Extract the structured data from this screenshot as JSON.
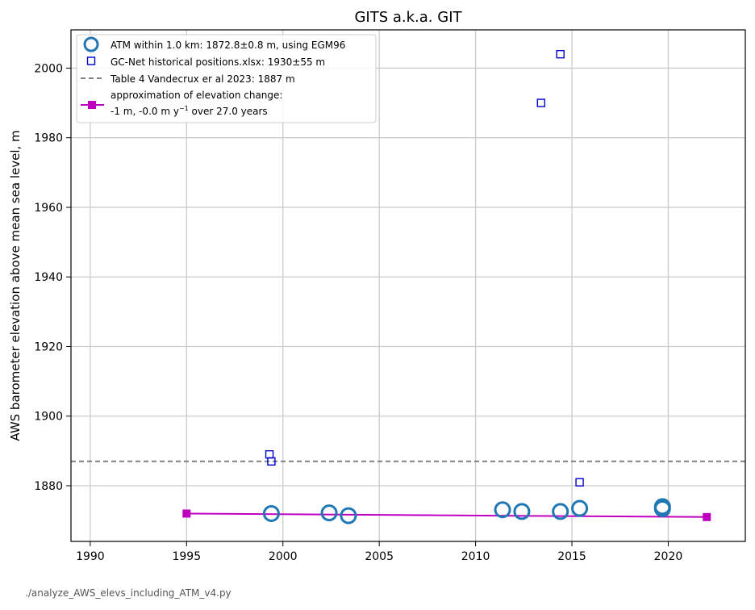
{
  "chart_data": {
    "type": "scatter",
    "title": "GITS a.k.a. GIT",
    "xlabel": "",
    "ylabel": "AWS barometer elevation above mean sea level, m",
    "xlim": [
      1989,
      2024
    ],
    "ylim": [
      1864,
      2011
    ],
    "xticks": [
      1990,
      1995,
      2000,
      2005,
      2010,
      2015,
      2020
    ],
    "yticks": [
      1880,
      1900,
      1920,
      1940,
      1960,
      1980,
      2000
    ],
    "grid": true,
    "legend_position": "top-left",
    "series": [
      {
        "name": "ATM within 1.0 km: 1872.8±0.8 m, using EGM96",
        "marker": "circle-open",
        "color": "#1f77b4",
        "points": [
          {
            "x": 1999.4,
            "y": 1872.0
          },
          {
            "x": 2002.4,
            "y": 1872.2
          },
          {
            "x": 2003.4,
            "y": 1871.4
          },
          {
            "x": 2011.4,
            "y": 1873.1
          },
          {
            "x": 2012.4,
            "y": 1872.6
          },
          {
            "x": 2014.4,
            "y": 1872.6
          },
          {
            "x": 2015.4,
            "y": 1873.5
          },
          {
            "x": 2019.7,
            "y": 1874.0
          },
          {
            "x": 2019.7,
            "y": 1873.4
          }
        ]
      },
      {
        "name": "GC-Net historical positions.xlsx: 1930±55 m",
        "marker": "square-open",
        "color": "#0000cc",
        "points": [
          {
            "x": 1999.3,
            "y": 1889
          },
          {
            "x": 1999.4,
            "y": 1887
          },
          {
            "x": 2013.4,
            "y": 1990
          },
          {
            "x": 2014.4,
            "y": 2004
          },
          {
            "x": 2015.4,
            "y": 1881
          }
        ]
      },
      {
        "name": "Table 4 Vandecrux er al 2023: 1887 m",
        "marker": "dashed-line",
        "color": "#808080",
        "y": 1887
      },
      {
        "name_line1": "approximation of elevation change:",
        "name_line2_prefix": "-1 m, -0.0 m y",
        "name_line2_sup": "−1",
        "name_line2_suffix": " over 27.0 years",
        "marker": "square-line",
        "color": "#c000c0",
        "points": [
          {
            "x": 1995,
            "y": 1872.0
          },
          {
            "x": 2022,
            "y": 1871.0
          }
        ]
      }
    ]
  },
  "footer": "./analyze_AWS_elevs_including_ATM_v4.py"
}
